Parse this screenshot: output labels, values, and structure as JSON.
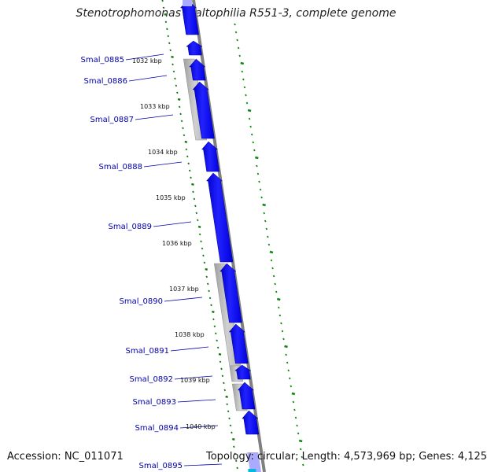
{
  "title": "Stenotrophomonas maltophilia R551-3, complete genome",
  "footer": {
    "accession": "Accession: NC_011071",
    "topology": "Topology: circular; Length: 4,573,969 bp; Genes: 4,125"
  },
  "colors": {
    "gene_forward": "#0000ee",
    "gene_highlight": "#aaaaff",
    "gc_band": "#b4b4b4",
    "backbone": "#808080",
    "gene_label": "#0000aa",
    "gc_skew_ticks": "#118811",
    "dot_track": "#117711",
    "cyan_feature": "#00bbdd"
  },
  "genes": [
    {
      "name": "Smal_0885"
    },
    {
      "name": "Smal_0886"
    },
    {
      "name": "Smal_0887"
    },
    {
      "name": "Smal_0888"
    },
    {
      "name": "Smal_0889"
    },
    {
      "name": "Smal_0890"
    },
    {
      "name": "Smal_0891"
    },
    {
      "name": "Smal_0892"
    },
    {
      "name": "Smal_0893"
    },
    {
      "name": "Smal_0894"
    },
    {
      "name": "Smal_0895"
    }
  ],
  "ticks": [
    "1032 kbp",
    "1033 kbp",
    "1034 kbp",
    "1035 kbp",
    "1036 kbp",
    "1037 kbp",
    "1038 kbp",
    "1039 kbp",
    "1040 kbp"
  ]
}
